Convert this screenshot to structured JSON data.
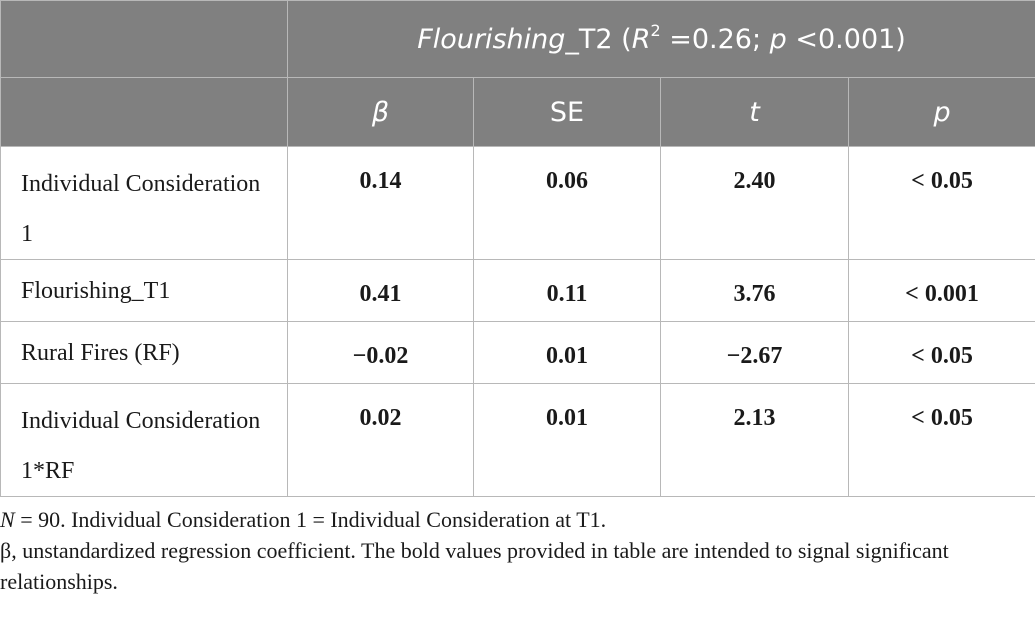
{
  "table": {
    "header": {
      "dv_label": "Flourishing",
      "dv_suffix": "_T2 (",
      "r_label": "R",
      "r_sup": "2",
      "r_value": " =0.26; ",
      "p_label": "p",
      "p_value": " <0.001)",
      "columns": [
        "β",
        "SE",
        "t",
        "p"
      ]
    },
    "rows": [
      {
        "label": "Individual Consideration 1",
        "beta": "0.14",
        "se": "0.06",
        "t": "2.40",
        "p": "< 0.05"
      },
      {
        "label": "Flourishing_T1",
        "beta": "0.41",
        "se": "0.11",
        "t": "3.76",
        "p": "< 0.001"
      },
      {
        "label": "Rural Fires (RF)",
        "beta": "−0.02",
        "se": "0.01",
        "t": "−2.67",
        "p": "< 0.05"
      },
      {
        "label": "Individual Consideration 1*RF",
        "beta": "0.02",
        "se": "0.01",
        "t": "2.13",
        "p": "< 0.05"
      }
    ]
  },
  "notes": {
    "n_label": "N",
    "line1_rest": " = 90. Individual Consideration 1 = Individual Consideration at T1.",
    "line2": "β, unstandardized regression coefficient. The bold values provided in table are intended to signal significant relationships."
  }
}
